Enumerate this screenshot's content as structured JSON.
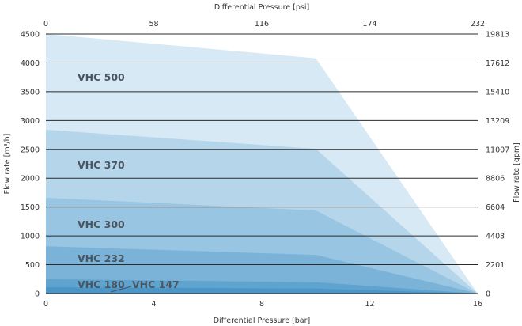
{
  "chart_data": {
    "type": "area",
    "xlabel": "Differential Pressure [bar]",
    "x2label": "Differential Pressure [psi]",
    "ylabel": "Flow rate [m³/h]",
    "y2label": "Flow rate [gpm]",
    "xlim": [
      0,
      16
    ],
    "ylim": [
      0,
      4500
    ],
    "x_ticks": [
      "0",
      "4",
      "8",
      "12",
      "16"
    ],
    "x2_ticks": [
      "0",
      "58",
      "116",
      "174",
      "232"
    ],
    "y_ticks": [
      "0",
      "500",
      "1000",
      "1500",
      "2000",
      "2500",
      "3000",
      "3500",
      "4000",
      "4500"
    ],
    "y2_ticks": [
      "0",
      "2201",
      "4403",
      "6604",
      "8806",
      "11007",
      "13209",
      "15410",
      "17612",
      "19813"
    ],
    "grid": true,
    "colors": [
      "#d7e9f4",
      "#b5d6ea",
      "#97c5e2",
      "#7ab3d7",
      "#5fa3cf",
      "#4b96c7"
    ],
    "series": [
      {
        "name": "VHC 500",
        "x": [
          0,
          10,
          16
        ],
        "y": [
          4500,
          4080,
          0
        ]
      },
      {
        "name": "VHC 370",
        "x": [
          0,
          10,
          16
        ],
        "y": [
          2840,
          2510,
          0
        ]
      },
      {
        "name": "VHC 300",
        "x": [
          0,
          10,
          16
        ],
        "y": [
          1660,
          1440,
          0
        ]
      },
      {
        "name": "VHC 232",
        "x": [
          0,
          10,
          16
        ],
        "y": [
          820,
          670,
          0
        ]
      },
      {
        "name": "VHC 180",
        "x": [
          0,
          10,
          16
        ],
        "y": [
          250,
          195,
          0
        ]
      },
      {
        "name": "VHC 147",
        "x": [
          0,
          10,
          16
        ],
        "y": [
          110,
          85,
          0
        ]
      }
    ]
  }
}
